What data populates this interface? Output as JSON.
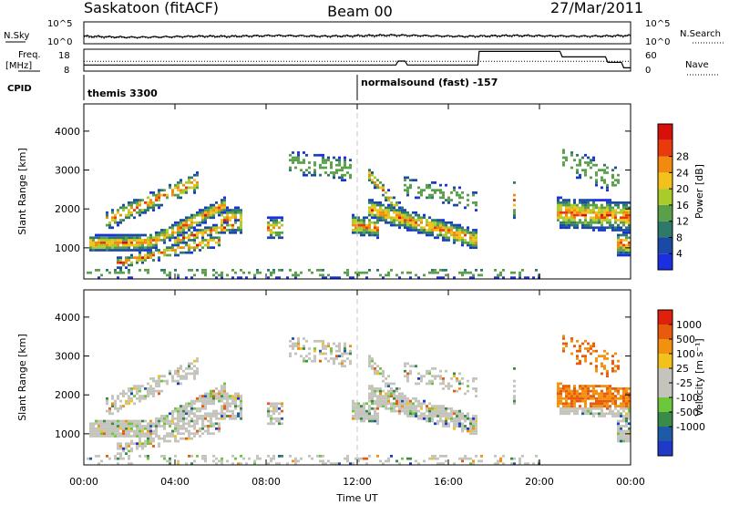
{
  "header": {
    "station": "Saskatoon (fitACF)",
    "beam": "Beam 00",
    "date": "27/Mar/2011"
  },
  "chart_data": [
    {
      "type": "line",
      "panel": "noise",
      "left_label": "N.Sky",
      "right_label": "N.Search",
      "left_ticks": [
        "10^5",
        "10^0"
      ],
      "right_ticks": [
        "10^5",
        "10^0"
      ],
      "series": [
        {
          "name": "N.Sky",
          "style": "solid",
          "values": [
            0.35,
            0.32,
            0.3,
            0.31,
            0.33,
            0.35,
            0.34,
            0.36,
            0.38,
            0.37,
            0.35,
            0.36,
            0.38,
            0.4,
            0.38,
            0.36,
            0.34,
            0.36,
            0.38,
            0.37,
            0.36,
            0.35,
            0.36,
            0.38
          ]
        },
        {
          "name": "N.Search",
          "style": "dotted",
          "values": [
            0.3,
            0.28,
            0.27,
            0.28,
            0.3,
            0.31,
            0.3,
            0.32,
            0.34,
            0.33,
            0.31,
            0.32,
            0.33,
            0.35,
            0.34,
            0.32,
            0.31,
            0.32,
            0.34,
            0.33,
            0.32,
            0.31,
            0.32,
            0.34
          ]
        }
      ]
    },
    {
      "type": "line",
      "panel": "frequency",
      "left_label_1": "Freq.",
      "left_label_2": "[MHz]",
      "right_label": "Nave",
      "left_ticks": [
        "18",
        "8"
      ],
      "right_ticks": [
        "60",
        "0"
      ],
      "freq_steps": [
        [
          0,
          10.8
        ],
        [
          13.7,
          10.8
        ],
        [
          13.8,
          12.6
        ],
        [
          14.1,
          12.6
        ],
        [
          14.2,
          10.8
        ],
        [
          17.3,
          10.8
        ],
        [
          17.35,
          17.0
        ],
        [
          20.9,
          17.0
        ],
        [
          21.0,
          14.5
        ],
        [
          22.9,
          14.5
        ],
        [
          23.0,
          12.0
        ],
        [
          23.6,
          12.0
        ],
        [
          23.7,
          9.5
        ],
        [
          24,
          9.5
        ]
      ],
      "nave_level": 0.45
    },
    {
      "type": "text-strip",
      "panel": "cpid",
      "label": "CPID",
      "segments": [
        {
          "start_hour": 0.0,
          "text": "themis 3300"
        },
        {
          "start_hour": 12.0,
          "text": "normalsound (fast) -157"
        }
      ]
    },
    {
      "type": "heatmap",
      "panel": "power",
      "ylabel": "Slant Range [km]",
      "yticks": [
        1000,
        2000,
        3000,
        4000
      ],
      "ylim": [
        200,
        4700
      ],
      "xlim": [
        0,
        24
      ],
      "colorbar_label": "Power [dB]",
      "colorbar_ticks": [
        "4",
        "8",
        "12",
        "16",
        "20",
        "24",
        "28"
      ],
      "palette": [
        "#1a2fe0",
        "#1a4aa6",
        "#2d7a6a",
        "#5aa04a",
        "#a9cc2a",
        "#f2c21a",
        "#f28a0f",
        "#e83a0c",
        "#d8100a"
      ]
    },
    {
      "type": "heatmap",
      "panel": "velocity",
      "ylabel": "Slant Range [km]",
      "yticks": [
        1000,
        2000,
        3000,
        4000
      ],
      "ylim": [
        200,
        4700
      ],
      "xlim": [
        0,
        24
      ],
      "colorbar_label": "Velocity [m s⁻¹]",
      "colorbar_ticks": [
        "1000",
        "500",
        "100",
        "25",
        "-25",
        "-100",
        "-500",
        "-1000"
      ],
      "palette": [
        "#1f39c8",
        "#1f5aa8",
        "#3a8a4a",
        "#6cc83a",
        "#c4c4bc",
        "#c4c4bc",
        "#f2c21a",
        "#f2900f",
        "#e85a0c",
        "#e0200a"
      ]
    }
  ],
  "xaxis": {
    "ticks": [
      "00:00",
      "04:00",
      "08:00",
      "12:00",
      "16:00",
      "20:00",
      "00:00"
    ],
    "label": "Time UT"
  }
}
